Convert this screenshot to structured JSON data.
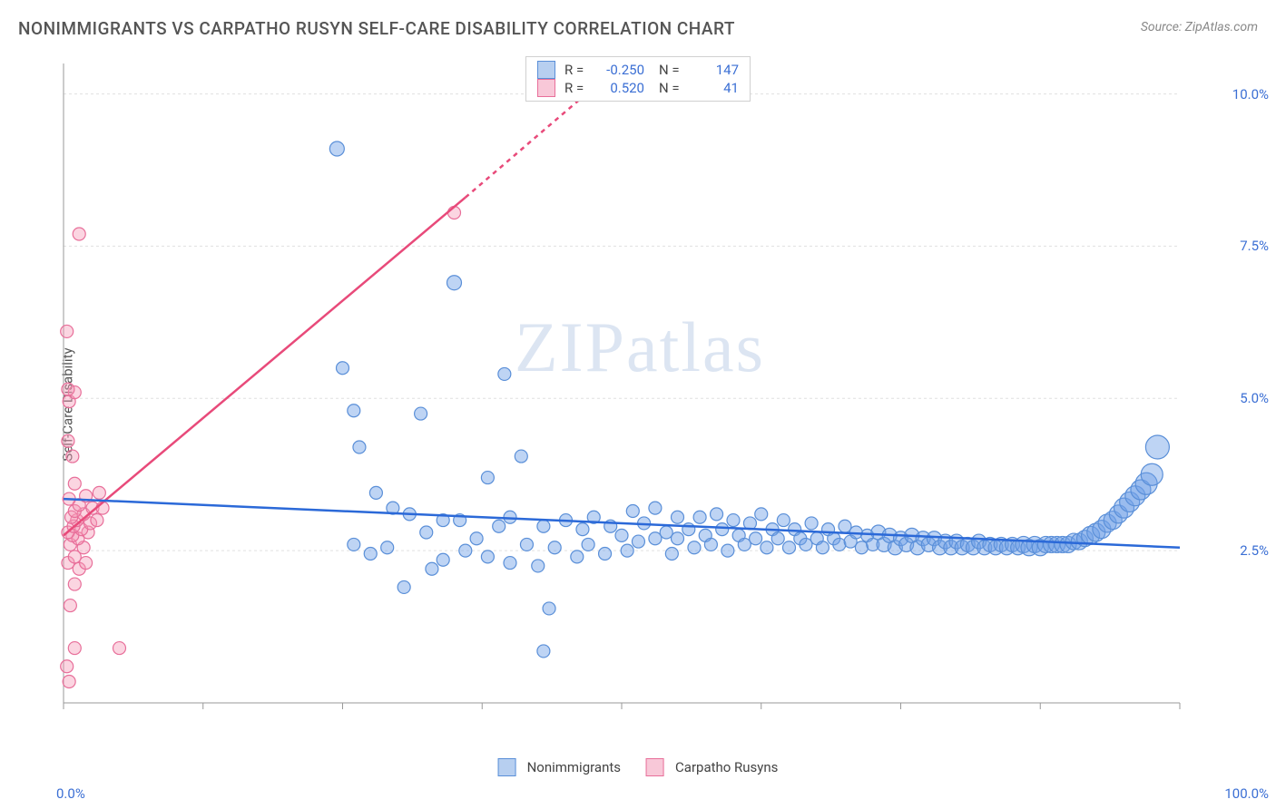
{
  "title": "NONIMMIGRANTS VS CARPATHO RUSYN SELF-CARE DISABILITY CORRELATION CHART",
  "source": "Source: ZipAtlas.com",
  "y_label": "Self-Care Disability",
  "watermark_a": "ZIP",
  "watermark_b": "atlas",
  "chart": {
    "type": "scatter",
    "background_color": "#ffffff",
    "grid_color": "#e0e0e0",
    "axis_color": "#999999",
    "tick_color": "#3b6fd4",
    "xlim": [
      0,
      100
    ],
    "ylim": [
      0,
      10.5
    ],
    "y_ticks": [
      2.5,
      5.0,
      7.5,
      10.0
    ],
    "y_tick_labels": [
      "2.5%",
      "5.0%",
      "7.5%",
      "10.0%"
    ],
    "x_tick_left": "0.0%",
    "x_tick_right": "100.0%",
    "x_minor_ticks": [
      0,
      12.5,
      25,
      37.5,
      50,
      62.5,
      75,
      87.5,
      100
    ],
    "marker_stroke_width": 1.2,
    "trend_line_width": 2.5,
    "trend_dash": "5,5"
  },
  "series": [
    {
      "name": "Nonimmigrants",
      "color_fill": "rgba(110,160,230,0.45)",
      "color_stroke": "#5a8fd8",
      "swatch_fill": "#b7cff0",
      "swatch_border": "#5a8fd8",
      "trend_color": "#2b69d8",
      "R": "-0.250",
      "N": "147",
      "trend": {
        "x1": 0,
        "y1": 3.35,
        "x2": 100,
        "y2": 2.55
      },
      "points": [
        {
          "x": 24.5,
          "y": 9.1,
          "r": 8
        },
        {
          "x": 35.0,
          "y": 6.9,
          "r": 8
        },
        {
          "x": 25.0,
          "y": 5.5,
          "r": 7
        },
        {
          "x": 26.0,
          "y": 4.8,
          "r": 7
        },
        {
          "x": 32.0,
          "y": 4.75,
          "r": 7
        },
        {
          "x": 26.5,
          "y": 4.2,
          "r": 7
        },
        {
          "x": 39.5,
          "y": 5.4,
          "r": 7
        },
        {
          "x": 28.0,
          "y": 3.45,
          "r": 7
        },
        {
          "x": 29.5,
          "y": 3.2,
          "r": 7
        },
        {
          "x": 26.0,
          "y": 2.6,
          "r": 7
        },
        {
          "x": 27.5,
          "y": 2.45,
          "r": 7
        },
        {
          "x": 29.0,
          "y": 2.55,
          "r": 7
        },
        {
          "x": 30.5,
          "y": 1.9,
          "r": 7
        },
        {
          "x": 31.0,
          "y": 3.1,
          "r": 7
        },
        {
          "x": 32.5,
          "y": 2.8,
          "r": 7
        },
        {
          "x": 33.0,
          "y": 2.2,
          "r": 7
        },
        {
          "x": 34.0,
          "y": 3.0,
          "r": 7
        },
        {
          "x": 34.0,
          "y": 2.35,
          "r": 7
        },
        {
          "x": 35.5,
          "y": 3.0,
          "r": 7
        },
        {
          "x": 36.0,
          "y": 2.5,
          "r": 7
        },
        {
          "x": 37.0,
          "y": 2.7,
          "r": 7
        },
        {
          "x": 38.0,
          "y": 2.4,
          "r": 7
        },
        {
          "x": 38.0,
          "y": 3.7,
          "r": 7
        },
        {
          "x": 39.0,
          "y": 2.9,
          "r": 7
        },
        {
          "x": 40.0,
          "y": 2.3,
          "r": 7
        },
        {
          "x": 40.0,
          "y": 3.05,
          "r": 7
        },
        {
          "x": 41.5,
          "y": 2.6,
          "r": 7
        },
        {
          "x": 41.0,
          "y": 4.05,
          "r": 7
        },
        {
          "x": 42.5,
          "y": 2.25,
          "r": 7
        },
        {
          "x": 43.0,
          "y": 2.9,
          "r": 7
        },
        {
          "x": 43.0,
          "y": 0.85,
          "r": 7
        },
        {
          "x": 43.5,
          "y": 1.55,
          "r": 7
        },
        {
          "x": 44.0,
          "y": 2.55,
          "r": 7
        },
        {
          "x": 45.0,
          "y": 3.0,
          "r": 7
        },
        {
          "x": 46.5,
          "y": 2.85,
          "r": 7
        },
        {
          "x": 46.0,
          "y": 2.4,
          "r": 7
        },
        {
          "x": 47.0,
          "y": 2.6,
          "r": 7
        },
        {
          "x": 47.5,
          "y": 3.05,
          "r": 7
        },
        {
          "x": 48.5,
          "y": 2.45,
          "r": 7
        },
        {
          "x": 49.0,
          "y": 2.9,
          "r": 7
        },
        {
          "x": 50.0,
          "y": 2.75,
          "r": 7
        },
        {
          "x": 50.5,
          "y": 2.5,
          "r": 7
        },
        {
          "x": 51.0,
          "y": 3.15,
          "r": 7
        },
        {
          "x": 51.5,
          "y": 2.65,
          "r": 7
        },
        {
          "x": 52.0,
          "y": 2.95,
          "r": 7
        },
        {
          "x": 53.0,
          "y": 2.7,
          "r": 7
        },
        {
          "x": 53.0,
          "y": 3.2,
          "r": 7
        },
        {
          "x": 54.0,
          "y": 2.8,
          "r": 7
        },
        {
          "x": 54.5,
          "y": 2.45,
          "r": 7
        },
        {
          "x": 55.0,
          "y": 3.05,
          "r": 7
        },
        {
          "x": 55.0,
          "y": 2.7,
          "r": 7
        },
        {
          "x": 56.0,
          "y": 2.85,
          "r": 7
        },
        {
          "x": 56.5,
          "y": 2.55,
          "r": 7
        },
        {
          "x": 57.0,
          "y": 3.05,
          "r": 7
        },
        {
          "x": 57.5,
          "y": 2.75,
          "r": 7
        },
        {
          "x": 58.0,
          "y": 2.6,
          "r": 7
        },
        {
          "x": 58.5,
          "y": 3.1,
          "r": 7
        },
        {
          "x": 59.0,
          "y": 2.85,
          "r": 7
        },
        {
          "x": 59.5,
          "y": 2.5,
          "r": 7
        },
        {
          "x": 60.0,
          "y": 3.0,
          "r": 7
        },
        {
          "x": 60.5,
          "y": 2.75,
          "r": 7
        },
        {
          "x": 61.0,
          "y": 2.6,
          "r": 7
        },
        {
          "x": 61.5,
          "y": 2.95,
          "r": 7
        },
        {
          "x": 62.0,
          "y": 2.7,
          "r": 7
        },
        {
          "x": 62.5,
          "y": 3.1,
          "r": 7
        },
        {
          "x": 63.0,
          "y": 2.55,
          "r": 7
        },
        {
          "x": 63.5,
          "y": 2.85,
          "r": 7
        },
        {
          "x": 64.0,
          "y": 2.7,
          "r": 7
        },
        {
          "x": 64.5,
          "y": 3.0,
          "r": 7
        },
        {
          "x": 65.0,
          "y": 2.55,
          "r": 7
        },
        {
          "x": 65.5,
          "y": 2.85,
          "r": 7
        },
        {
          "x": 66.0,
          "y": 2.7,
          "r": 7
        },
        {
          "x": 66.5,
          "y": 2.6,
          "r": 7
        },
        {
          "x": 67.0,
          "y": 2.95,
          "r": 7
        },
        {
          "x": 67.5,
          "y": 2.7,
          "r": 7
        },
        {
          "x": 68.0,
          "y": 2.55,
          "r": 7
        },
        {
          "x": 68.5,
          "y": 2.85,
          "r": 7
        },
        {
          "x": 69.0,
          "y": 2.7,
          "r": 7
        },
        {
          "x": 69.5,
          "y": 2.6,
          "r": 7
        },
        {
          "x": 70.0,
          "y": 2.9,
          "r": 7
        },
        {
          "x": 70.5,
          "y": 2.65,
          "r": 7
        },
        {
          "x": 71.0,
          "y": 2.8,
          "r": 7
        },
        {
          "x": 71.5,
          "y": 2.55,
          "r": 7
        },
        {
          "x": 72.0,
          "y": 2.75,
          "r": 7
        },
        {
          "x": 72.5,
          "y": 2.6,
          "r": 7
        },
        {
          "x": 73.0,
          "y": 2.8,
          "r": 8
        },
        {
          "x": 73.5,
          "y": 2.6,
          "r": 8
        },
        {
          "x": 74.0,
          "y": 2.75,
          "r": 8
        },
        {
          "x": 74.5,
          "y": 2.55,
          "r": 8
        },
        {
          "x": 75.0,
          "y": 2.7,
          "r": 8
        },
        {
          "x": 75.5,
          "y": 2.6,
          "r": 8
        },
        {
          "x": 76.0,
          "y": 2.75,
          "r": 8
        },
        {
          "x": 76.5,
          "y": 2.55,
          "r": 8
        },
        {
          "x": 77.0,
          "y": 2.7,
          "r": 8
        },
        {
          "x": 77.5,
          "y": 2.6,
          "r": 8
        },
        {
          "x": 78.0,
          "y": 2.7,
          "r": 8
        },
        {
          "x": 78.5,
          "y": 2.55,
          "r": 8
        },
        {
          "x": 79.0,
          "y": 2.65,
          "r": 8
        },
        {
          "x": 79.5,
          "y": 2.55,
          "r": 8
        },
        {
          "x": 80.0,
          "y": 2.65,
          "r": 8
        },
        {
          "x": 80.5,
          "y": 2.55,
          "r": 8
        },
        {
          "x": 81.0,
          "y": 2.6,
          "r": 8
        },
        {
          "x": 81.5,
          "y": 2.55,
          "r": 8
        },
        {
          "x": 82.0,
          "y": 2.65,
          "r": 8
        },
        {
          "x": 82.5,
          "y": 2.55,
          "r": 8
        },
        {
          "x": 83.0,
          "y": 2.6,
          "r": 8
        },
        {
          "x": 83.5,
          "y": 2.55,
          "r": 8
        },
        {
          "x": 84.0,
          "y": 2.6,
          "r": 8
        },
        {
          "x": 84.5,
          "y": 2.55,
          "r": 8
        },
        {
          "x": 85.0,
          "y": 2.6,
          "r": 8
        },
        {
          "x": 85.5,
          "y": 2.55,
          "r": 8
        },
        {
          "x": 86.0,
          "y": 2.6,
          "r": 9
        },
        {
          "x": 86.5,
          "y": 2.55,
          "r": 9
        },
        {
          "x": 87.0,
          "y": 2.6,
          "r": 9
        },
        {
          "x": 87.5,
          "y": 2.55,
          "r": 9
        },
        {
          "x": 88.0,
          "y": 2.6,
          "r": 9
        },
        {
          "x": 88.5,
          "y": 2.6,
          "r": 9
        },
        {
          "x": 89.0,
          "y": 2.6,
          "r": 9
        },
        {
          "x": 89.5,
          "y": 2.6,
          "r": 9
        },
        {
          "x": 90.0,
          "y": 2.6,
          "r": 9
        },
        {
          "x": 90.5,
          "y": 2.65,
          "r": 9
        },
        {
          "x": 91.0,
          "y": 2.65,
          "r": 9
        },
        {
          "x": 91.5,
          "y": 2.7,
          "r": 9
        },
        {
          "x": 92.0,
          "y": 2.75,
          "r": 10
        },
        {
          "x": 92.5,
          "y": 2.8,
          "r": 10
        },
        {
          "x": 93.0,
          "y": 2.85,
          "r": 10
        },
        {
          "x": 93.5,
          "y": 2.95,
          "r": 10
        },
        {
          "x": 94.0,
          "y": 3.0,
          "r": 10
        },
        {
          "x": 94.5,
          "y": 3.1,
          "r": 10
        },
        {
          "x": 95.0,
          "y": 3.2,
          "r": 11
        },
        {
          "x": 95.5,
          "y": 3.3,
          "r": 11
        },
        {
          "x": 96.0,
          "y": 3.4,
          "r": 11
        },
        {
          "x": 96.5,
          "y": 3.5,
          "r": 11
        },
        {
          "x": 97.0,
          "y": 3.6,
          "r": 12
        },
        {
          "x": 97.5,
          "y": 3.75,
          "r": 12
        },
        {
          "x": 98.0,
          "y": 4.2,
          "r": 13
        }
      ]
    },
    {
      "name": "Carpatho Rusyns",
      "color_fill": "rgba(245,150,180,0.40)",
      "color_stroke": "#e86f9a",
      "swatch_fill": "#f8c8d8",
      "swatch_border": "#e86f9a",
      "trend_color": "#e84a7a",
      "R": "0.520",
      "N": "41",
      "trend_solid": {
        "x1": 0,
        "y1": 2.75,
        "x2": 36,
        "y2": 8.3
      },
      "trend_dash": {
        "x1": 36,
        "y1": 8.3,
        "x2": 50,
        "y2": 10.5
      },
      "points": [
        {
          "x": 0.5,
          "y": 0.35,
          "r": 7
        },
        {
          "x": 0.3,
          "y": 0.6,
          "r": 7
        },
        {
          "x": 1.0,
          "y": 0.9,
          "r": 7
        },
        {
          "x": 5.0,
          "y": 0.9,
          "r": 7
        },
        {
          "x": 0.6,
          "y": 1.6,
          "r": 7
        },
        {
          "x": 1.0,
          "y": 1.95,
          "r": 7
        },
        {
          "x": 1.4,
          "y": 2.2,
          "r": 7
        },
        {
          "x": 0.4,
          "y": 2.3,
          "r": 7
        },
        {
          "x": 2.0,
          "y": 2.3,
          "r": 7
        },
        {
          "x": 1.0,
          "y": 2.4,
          "r": 7
        },
        {
          "x": 1.8,
          "y": 2.55,
          "r": 7
        },
        {
          "x": 0.6,
          "y": 2.6,
          "r": 7
        },
        {
          "x": 1.3,
          "y": 2.7,
          "r": 7
        },
        {
          "x": 0.8,
          "y": 2.75,
          "r": 7
        },
        {
          "x": 2.2,
          "y": 2.8,
          "r": 7
        },
        {
          "x": 0.4,
          "y": 2.8,
          "r": 7
        },
        {
          "x": 1.6,
          "y": 2.85,
          "r": 7
        },
        {
          "x": 0.9,
          "y": 2.9,
          "r": 7
        },
        {
          "x": 2.4,
          "y": 2.95,
          "r": 7
        },
        {
          "x": 1.2,
          "y": 3.0,
          "r": 7
        },
        {
          "x": 3.0,
          "y": 3.0,
          "r": 7
        },
        {
          "x": 0.7,
          "y": 3.05,
          "r": 7
        },
        {
          "x": 1.8,
          "y": 3.1,
          "r": 7
        },
        {
          "x": 1.0,
          "y": 3.15,
          "r": 7
        },
        {
          "x": 2.6,
          "y": 3.2,
          "r": 7
        },
        {
          "x": 3.5,
          "y": 3.2,
          "r": 7
        },
        {
          "x": 1.4,
          "y": 3.25,
          "r": 7
        },
        {
          "x": 0.5,
          "y": 3.35,
          "r": 7
        },
        {
          "x": 2.0,
          "y": 3.4,
          "r": 7
        },
        {
          "x": 3.2,
          "y": 3.45,
          "r": 7
        },
        {
          "x": 1.0,
          "y": 3.6,
          "r": 7
        },
        {
          "x": 0.8,
          "y": 4.05,
          "r": 7
        },
        {
          "x": 0.4,
          "y": 4.3,
          "r": 7
        },
        {
          "x": 0.5,
          "y": 4.95,
          "r": 7
        },
        {
          "x": 1.0,
          "y": 5.1,
          "r": 7
        },
        {
          "x": 0.4,
          "y": 5.15,
          "r": 7
        },
        {
          "x": 0.3,
          "y": 6.1,
          "r": 7
        },
        {
          "x": 1.4,
          "y": 7.7,
          "r": 7
        },
        {
          "x": 35.0,
          "y": 8.05,
          "r": 7
        }
      ]
    }
  ],
  "stats_box": {
    "rows": [
      {
        "swatch_fill": "#b7cff0",
        "swatch_border": "#5a8fd8",
        "r_label": "R =",
        "r_val": "-0.250",
        "n_label": "N =",
        "n_val": "147"
      },
      {
        "swatch_fill": "#f8c8d8",
        "swatch_border": "#e86f9a",
        "r_label": "R =",
        "r_val": "0.520",
        "n_label": "N =",
        "n_val": "41"
      }
    ]
  },
  "legend": [
    {
      "swatch_fill": "#b7cff0",
      "swatch_border": "#5a8fd8",
      "label": "Nonimmigrants"
    },
    {
      "swatch_fill": "#f8c8d8",
      "swatch_border": "#e86f9a",
      "label": "Carpatho Rusyns"
    }
  ]
}
